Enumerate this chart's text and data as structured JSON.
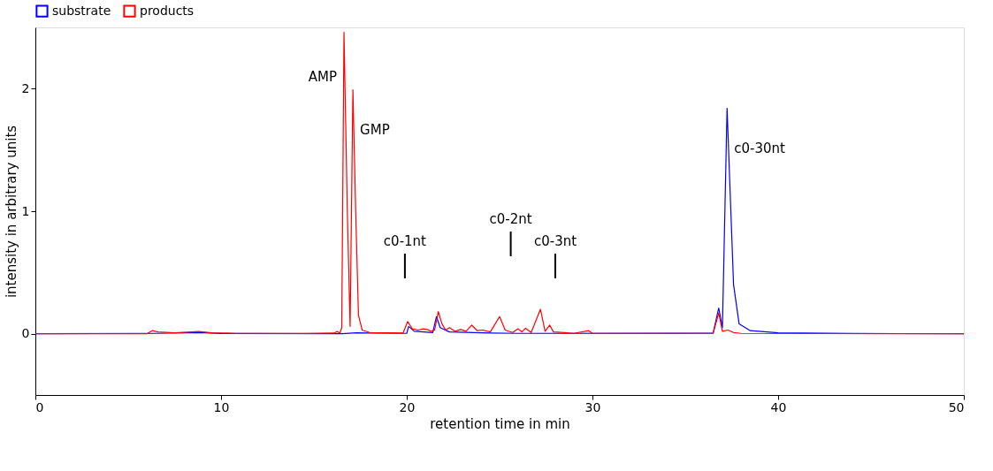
{
  "chart_data": {
    "type": "line",
    "xlabel": "retention time in min",
    "ylabel": "intensity in arbitrary units",
    "xlim": [
      0,
      50
    ],
    "xticks": [
      0,
      10,
      20,
      30,
      40,
      50
    ],
    "ylim": [
      -0.5,
      2.5
    ],
    "yticks": [
      {
        "value": 0,
        "label": "0"
      },
      {
        "value": 1,
        "label": "1"
      },
      {
        "value": 2,
        "label": "2"
      }
    ],
    "grid": false,
    "legend": "top left",
    "line_style": "solid",
    "series": [
      {
        "name": "substrate",
        "color": "#0000ff",
        "x": [
          0,
          6.5,
          8.8,
          10,
          16.5,
          17.3,
          18,
          20,
          20.1,
          20.4,
          21.4,
          21.6,
          21.8,
          22.3,
          24.5,
          26,
          36.5,
          36.8,
          37.0,
          37.25,
          37.6,
          37.9,
          38.5,
          40,
          44,
          50
        ],
        "values": [
          0,
          0.003,
          0.01,
          0.002,
          0,
          0.008,
          0.005,
          0.003,
          0.06,
          0.02,
          0.01,
          0.14,
          0.05,
          0.015,
          0.005,
          0.003,
          0.005,
          0.21,
          0.05,
          1.84,
          0.4,
          0.08,
          0.025,
          0.008,
          0.002,
          0
        ]
      },
      {
        "name": "products",
        "color": "#ff0000",
        "x": [
          0,
          6.0,
          6.3,
          6.6,
          7.5,
          8.8,
          9.5,
          10.8,
          14.5,
          16.1,
          16.25,
          16.4,
          16.5,
          16.62,
          16.8,
          16.95,
          17.1,
          17.25,
          17.4,
          17.6,
          18,
          19.8,
          20.05,
          20.3,
          20.6,
          20.9,
          21.1,
          21.3,
          21.5,
          21.7,
          21.9,
          22.1,
          22.3,
          22.6,
          22.9,
          23.2,
          23.5,
          23.8,
          24.1,
          24.5,
          25.0,
          25.3,
          25.7,
          26.0,
          26.2,
          26.4,
          26.7,
          27.2,
          27.45,
          27.7,
          27.9,
          28.5,
          29.0,
          29.8,
          30.0,
          36.5,
          36.8,
          37.0,
          37.3,
          37.6,
          38,
          50
        ],
        "values": [
          0,
          0,
          0.025,
          0.015,
          0.008,
          0.018,
          0.008,
          0.003,
          0.002,
          0.005,
          0.02,
          0.005,
          0.05,
          2.46,
          1.0,
          0.06,
          1.99,
          1.0,
          0.15,
          0.03,
          0.01,
          0.005,
          0.1,
          0.04,
          0.03,
          0.04,
          0.035,
          0.02,
          0.03,
          0.18,
          0.08,
          0.03,
          0.05,
          0.02,
          0.035,
          0.02,
          0.07,
          0.025,
          0.03,
          0.015,
          0.14,
          0.03,
          0.01,
          0.04,
          0.015,
          0.045,
          0.01,
          0.2,
          0.02,
          0.07,
          0.015,
          0.01,
          0.003,
          0.025,
          0.003,
          0.003,
          0.17,
          0.02,
          0.03,
          0.01,
          0.003,
          0
        ]
      }
    ],
    "annotations": [
      {
        "text": "AMP",
        "x": 16.62,
        "y": 2.46
      },
      {
        "text": "GMP",
        "x": 17.1,
        "y": 1.99
      },
      {
        "text": "c0-30nt",
        "x": 37.25,
        "y": 1.84
      },
      {
        "text": "c0-1nt",
        "x": 19.9
      },
      {
        "text": "c0-2nt",
        "x": 25.6
      },
      {
        "text": "c0-3nt",
        "x": 28.0
      }
    ]
  }
}
